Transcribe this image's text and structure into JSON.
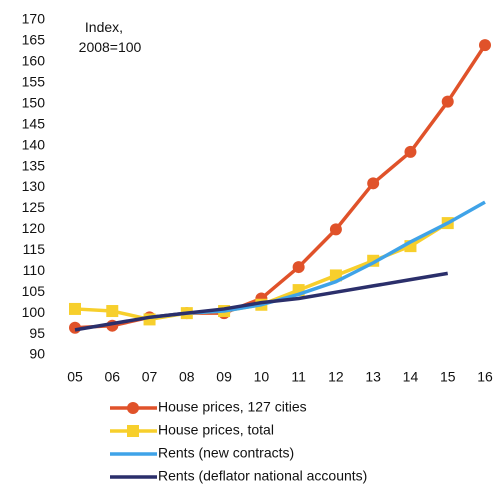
{
  "chart_data": {
    "type": "line",
    "annotation": "Index,\n2008=100",
    "categories": [
      "05",
      "06",
      "07",
      "08",
      "09",
      "10",
      "11",
      "12",
      "13",
      "14",
      "15",
      "16"
    ],
    "series": [
      {
        "name": "House prices, 127 cities",
        "color": "#e0522a",
        "marker": "circle",
        "values": [
          96.5,
          97,
          99,
          100,
          100,
          103.5,
          111,
          120,
          131,
          138.5,
          150.5,
          164
        ]
      },
      {
        "name": "House prices, total",
        "color": "#f7cf2c",
        "marker": "square",
        "values": [
          101,
          100.5,
          98.5,
          100,
          100.5,
          102,
          105.5,
          109,
          112.5,
          116,
          121.5,
          null
        ]
      },
      {
        "name": "Rents (new contracts)",
        "color": "#3fa3e8",
        "marker": "none",
        "values": [
          null,
          null,
          99,
          100,
          100.5,
          102,
          104.5,
          107.5,
          112,
          117,
          121.5,
          126.5
        ]
      },
      {
        "name": "Rents (deflator national accounts)",
        "color": "#2b2f6b",
        "marker": "none",
        "values": [
          96,
          97.5,
          99,
          100,
          101,
          102.5,
          103.5,
          105,
          106.5,
          108,
          109.5,
          null
        ]
      }
    ],
    "ylim": [
      90,
      170
    ],
    "yticks": [
      90,
      95,
      100,
      105,
      110,
      115,
      120,
      125,
      130,
      135,
      140,
      145,
      150,
      155,
      160,
      165,
      170
    ],
    "grid": false
  }
}
